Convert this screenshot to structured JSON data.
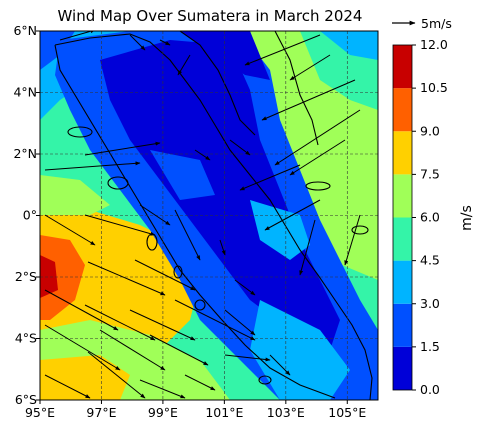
{
  "title": "Wind Map Over Sumatera in March 2024",
  "map": {
    "lon_range": [
      95,
      106
    ],
    "lat_range": [
      -6,
      6
    ],
    "lon_ticks": [
      "95°E",
      "97°E",
      "99°E",
      "101°E",
      "103°E",
      "105°E"
    ],
    "lat_ticks": [
      "6°N",
      "4°N",
      "2°N",
      "0°",
      "2°S",
      "4°S",
      "6°S"
    ],
    "grid": "dashed"
  },
  "colorbar": {
    "label": "m/s",
    "levels": [
      0.0,
      1.5,
      3.0,
      4.5,
      6.0,
      7.5,
      9.0,
      10.5,
      12.0
    ],
    "tick_labels": [
      "0.0",
      "1.5",
      "3.0",
      "4.5",
      "6.0",
      "7.5",
      "9.0",
      "10.5",
      "12.0"
    ],
    "colors": [
      "#0000d8",
      "#0050ff",
      "#00b4ff",
      "#34f4a8",
      "#a0ff58",
      "#ffd000",
      "#ff6000",
      "#c80000"
    ]
  },
  "quiver_key": {
    "label": "5m/s",
    "speed": 5
  },
  "colors": {
    "land_outline": "#000000",
    "grid": "#333333"
  }
}
